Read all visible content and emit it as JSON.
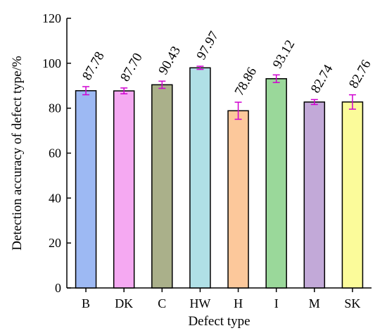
{
  "chart_data": {
    "type": "bar",
    "title": "",
    "xlabel": "Defect type",
    "ylabel": "Detection accuracy of defect type/%",
    "ylim": [
      0,
      120
    ],
    "yticks": [
      0,
      20,
      40,
      60,
      80,
      100,
      120
    ],
    "categories": [
      "B",
      "DK",
      "C",
      "HW",
      "H",
      "I",
      "M",
      "SK"
    ],
    "values": [
      87.78,
      87.7,
      90.43,
      97.97,
      78.86,
      93.12,
      82.74,
      82.76
    ],
    "value_labels": [
      "87.78",
      "87.70",
      "90.43",
      "97.97",
      "78.86",
      "93.12",
      "82.74",
      "82.76"
    ],
    "error": [
      1.8,
      1.3,
      1.6,
      0.7,
      3.8,
      1.7,
      1.1,
      3.2
    ],
    "bar_colors": [
      "#9db9f3",
      "#f5a9f2",
      "#aab08a",
      "#b0e0e6",
      "#fcc89b",
      "#9ad89a",
      "#c2a9d8",
      "#fbfb9a"
    ],
    "error_color": "#d000d0",
    "grid": false,
    "legend": "none"
  }
}
